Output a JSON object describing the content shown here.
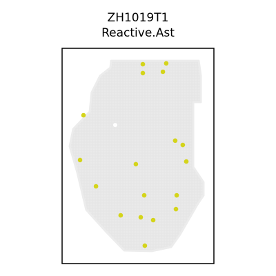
{
  "chart_data": {
    "type": "scatter",
    "title_lines": [
      "ZH1019T1",
      "Reactive.Ast"
    ],
    "xlabel": "",
    "ylabel": "",
    "grid": false,
    "legend": "none",
    "colors": {
      "background_spot": "#ececec",
      "highlight": "#d4d41a",
      "frame": "#000000"
    },
    "xlim": [
      0,
      100
    ],
    "ylim": [
      0,
      100
    ],
    "highlight_points": [
      {
        "x": 53.2,
        "y": 92.6
      },
      {
        "x": 68.6,
        "y": 93.0
      },
      {
        "x": 53.2,
        "y": 88.5
      },
      {
        "x": 66.4,
        "y": 89.1
      },
      {
        "x": 14.1,
        "y": 68.9
      },
      {
        "x": 74.5,
        "y": 57.1
      },
      {
        "x": 79.5,
        "y": 55.1
      },
      {
        "x": 11.8,
        "y": 48.1
      },
      {
        "x": 81.8,
        "y": 47.4
      },
      {
        "x": 48.6,
        "y": 46.2
      },
      {
        "x": 22.3,
        "y": 35.9
      },
      {
        "x": 54.1,
        "y": 31.7
      },
      {
        "x": 75.5,
        "y": 31.7
      },
      {
        "x": 75.0,
        "y": 25.3
      },
      {
        "x": 38.6,
        "y": 22.4
      },
      {
        "x": 51.8,
        "y": 21.5
      },
      {
        "x": 60.0,
        "y": 20.2
      },
      {
        "x": 54.5,
        "y": 8.3
      }
    ],
    "tissue_outline": [
      [
        32.3,
        94.2
      ],
      [
        90.0,
        94.2
      ],
      [
        91.4,
        87.2
      ],
      [
        91.4,
        75.0
      ],
      [
        86.4,
        75.0
      ],
      [
        86.4,
        44.9
      ],
      [
        93.2,
        37.8
      ],
      [
        93.2,
        31.7
      ],
      [
        89.5,
        27.9
      ],
      [
        77.7,
        13.5
      ],
      [
        71.8,
        7.7
      ],
      [
        59.1,
        5.8
      ],
      [
        40.9,
        6.1
      ],
      [
        29.1,
        14.7
      ],
      [
        15.9,
        25.0
      ],
      [
        10.0,
        42.3
      ],
      [
        5.0,
        54.5
      ],
      [
        7.3,
        62.5
      ],
      [
        18.2,
        70.5
      ],
      [
        19.5,
        79.5
      ],
      [
        25.0,
        87.2
      ],
      [
        31.8,
        91.0
      ]
    ],
    "empty_points": [
      {
        "x": 35.0,
        "y": 64.4
      }
    ]
  }
}
